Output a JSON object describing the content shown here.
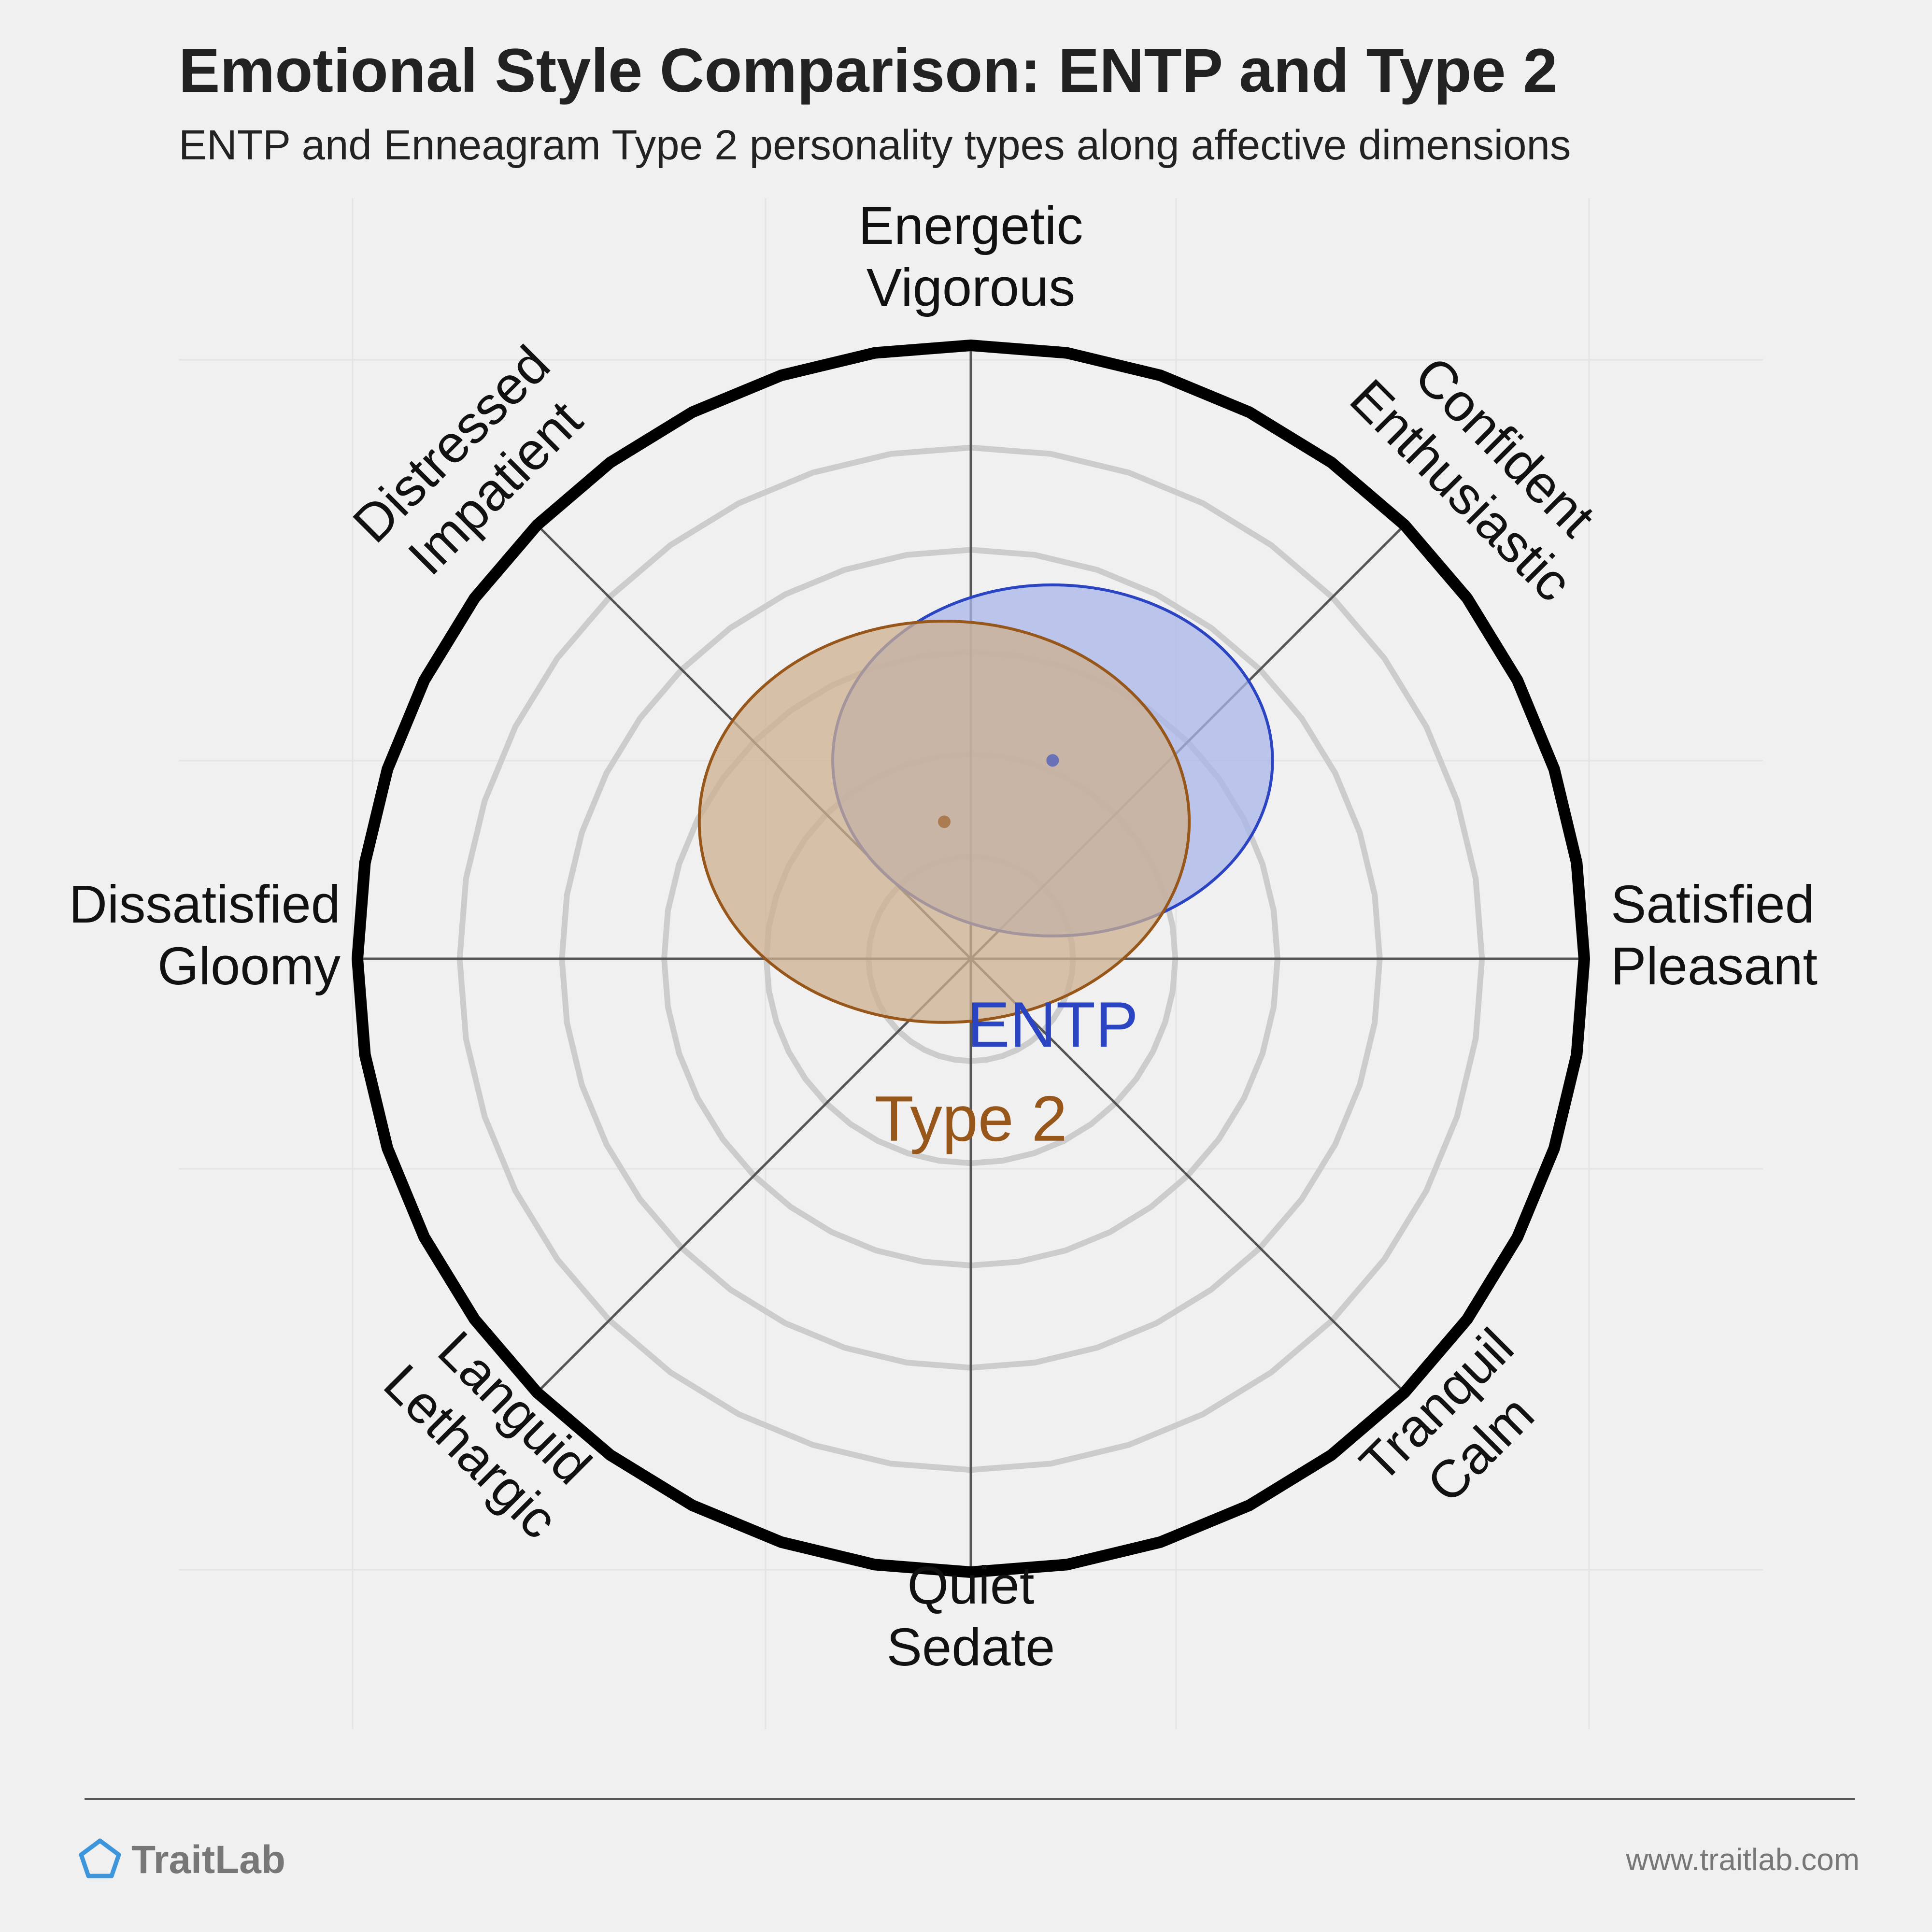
{
  "chart_data": {
    "type": "scatter",
    "title": "Emotional Style Comparison: ENTP and Type 2",
    "subtitle": "ENTP and Enneagram Type 2 personality types along affective dimensions",
    "axes": [
      {
        "id": "top",
        "lines": [
          "Energetic",
          "Vigorous"
        ]
      },
      {
        "id": "top-right",
        "lines": [
          "Confident",
          "Enthusiastic"
        ]
      },
      {
        "id": "right",
        "lines": [
          "Satisfied",
          "Pleasant"
        ]
      },
      {
        "id": "bottom-right",
        "lines": [
          "Tranquil",
          "Calm"
        ]
      },
      {
        "id": "bottom",
        "lines": [
          "Quiet",
          "Sedate"
        ]
      },
      {
        "id": "bottom-left",
        "lines": [
          "Languid",
          "Lethargic"
        ]
      },
      {
        "id": "left",
        "lines": [
          "Dissatisfied",
          "Gloomy"
        ]
      },
      {
        "id": "top-left",
        "lines": [
          "Distressed",
          "Impatient"
        ]
      }
    ],
    "xlim": [
      -3,
      3
    ],
    "ylim": [
      -3,
      3
    ],
    "rings": 6,
    "grid": true,
    "series": [
      {
        "name": "ENTP",
        "x": 0.4,
        "y": 0.97,
        "spread_x": 1.14,
        "spread_y": 0.91,
        "color": "#2b45c2",
        "fill": "#a9b5ea"
      },
      {
        "name": "Type 2",
        "x": -0.13,
        "y": 0.67,
        "spread_x": 1.27,
        "spread_y": 1.04,
        "color": "#98571a",
        "fill": "#cdb08f"
      }
    ]
  },
  "footer": {
    "brand": "TraitLab",
    "url": "www.traitlab.com"
  },
  "colors": {
    "background": "#f0f0f0",
    "ring": "#cccccc",
    "outer_ring": "#000000",
    "axis_line": "#555555"
  }
}
